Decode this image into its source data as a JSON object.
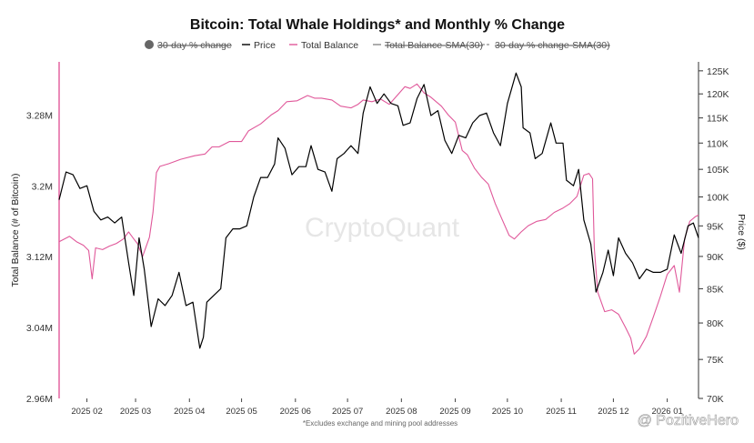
{
  "chart_data": {
    "type": "line",
    "title": "Bitcoin: Total Whale Holdings* and Monthly % Change",
    "footnote": "*Excludes exchange and mining pool addresses",
    "watermark": "CryptoQuant",
    "credit": "@ PozitiveHero",
    "colors": {
      "price": "#000000",
      "balance": "#e0589a",
      "inactive": "#8a8a8a",
      "left_axis_line": "#e0589a"
    },
    "legend": [
      {
        "label": "30-day % change",
        "marker": "dot",
        "active": false
      },
      {
        "label": "Price",
        "marker": "line",
        "active": true
      },
      {
        "label": "Total Balance",
        "marker": "line",
        "active": true
      },
      {
        "label": "Total Balance-SMA(30)",
        "marker": "line",
        "active": false
      },
      {
        "label": "30-day % change-SMA(30)",
        "marker": "dashed",
        "active": false
      }
    ],
    "legend_position": "top-center",
    "x_ticks": [
      "2025 02",
      "2025 03",
      "2025 04",
      "2025 05",
      "2025 06",
      "2025 07",
      "2025 08",
      "2025 09",
      "2025 10",
      "2025 11",
      "2025 12",
      "2026 01"
    ],
    "y_left": {
      "label": "Total Balance (# of Bitcoin)",
      "ticks": [
        "3.28M",
        "3.2M",
        "3.12M",
        "3.04M",
        "2.96M"
      ],
      "range": [
        2.96,
        3.34
      ],
      "unit": "M BTC"
    },
    "y_right": {
      "label": "Price ($)",
      "ticks": [
        "125K",
        "120K",
        "115K",
        "110K",
        "105K",
        "100K",
        "95K",
        "90K",
        "85K",
        "80K",
        "75K",
        "70K"
      ],
      "scale": "log",
      "range": [
        70,
        127
      ],
      "unit": "K USD"
    },
    "x_range": [
      "2025-01-16",
      "2026-01-19"
    ],
    "series": [
      {
        "name": "Price",
        "axis": "right",
        "points": [
          [
            "2025-01-16",
            99.5
          ],
          [
            "2025-01-20",
            104.5
          ],
          [
            "2025-01-24",
            104
          ],
          [
            "2025-01-28",
            101.5
          ],
          [
            "2025-02-01",
            102
          ],
          [
            "2025-02-05",
            97.5
          ],
          [
            "2025-02-09",
            96
          ],
          [
            "2025-02-13",
            96.5
          ],
          [
            "2025-02-17",
            95.5
          ],
          [
            "2025-02-21",
            96.5
          ],
          [
            "2025-02-25",
            89
          ],
          [
            "2025-02-28",
            84
          ],
          [
            "2025-03-03",
            93
          ],
          [
            "2025-03-06",
            88
          ],
          [
            "2025-03-10",
            79.5
          ],
          [
            "2025-03-14",
            83.5
          ],
          [
            "2025-03-18",
            82.5
          ],
          [
            "2025-03-22",
            84
          ],
          [
            "2025-03-26",
            87.5
          ],
          [
            "2025-03-30",
            82.5
          ],
          [
            "2025-04-03",
            83
          ],
          [
            "2025-04-07",
            76.5
          ],
          [
            "2025-04-09",
            78
          ],
          [
            "2025-04-11",
            83
          ],
          [
            "2025-04-15",
            84
          ],
          [
            "2025-04-19",
            85
          ],
          [
            "2025-04-22",
            93
          ],
          [
            "2025-04-26",
            94.5
          ],
          [
            "2025-04-30",
            94.5
          ],
          [
            "2025-05-04",
            95
          ],
          [
            "2025-05-08",
            100
          ],
          [
            "2025-05-12",
            103.5
          ],
          [
            "2025-05-16",
            103.5
          ],
          [
            "2025-05-20",
            106
          ],
          [
            "2025-05-22",
            111
          ],
          [
            "2025-05-26",
            109
          ],
          [
            "2025-05-30",
            104
          ],
          [
            "2025-06-03",
            105.5
          ],
          [
            "2025-06-07",
            105.5
          ],
          [
            "2025-06-10",
            109.5
          ],
          [
            "2025-06-14",
            105
          ],
          [
            "2025-06-18",
            104.5
          ],
          [
            "2025-06-22",
            101
          ],
          [
            "2025-06-25",
            107
          ],
          [
            "2025-06-29",
            108
          ],
          [
            "2025-07-03",
            109.5
          ],
          [
            "2025-07-07",
            108
          ],
          [
            "2025-07-10",
            116
          ],
          [
            "2025-07-14",
            121.5
          ],
          [
            "2025-07-18",
            118
          ],
          [
            "2025-07-22",
            120
          ],
          [
            "2025-07-26",
            118
          ],
          [
            "2025-07-30",
            117.5
          ],
          [
            "2025-08-02",
            113.5
          ],
          [
            "2025-08-06",
            114
          ],
          [
            "2025-08-10",
            119
          ],
          [
            "2025-08-14",
            122
          ],
          [
            "2025-08-18",
            115.5
          ],
          [
            "2025-08-22",
            116.5
          ],
          [
            "2025-08-26",
            110.5
          ],
          [
            "2025-08-30",
            108
          ],
          [
            "2025-09-03",
            111.5
          ],
          [
            "2025-09-07",
            111
          ],
          [
            "2025-09-11",
            114
          ],
          [
            "2025-09-15",
            115.5
          ],
          [
            "2025-09-19",
            116
          ],
          [
            "2025-09-23",
            112
          ],
          [
            "2025-09-27",
            109.5
          ],
          [
            "2025-10-01",
            118
          ],
          [
            "2025-10-06",
            124.5
          ],
          [
            "2025-10-09",
            121.5
          ],
          [
            "2025-10-10",
            113
          ],
          [
            "2025-10-14",
            112
          ],
          [
            "2025-10-17",
            107
          ],
          [
            "2025-10-21",
            108
          ],
          [
            "2025-10-26",
            114
          ],
          [
            "2025-10-29",
            110
          ],
          [
            "2025-11-02",
            110
          ],
          [
            "2025-11-04",
            103
          ],
          [
            "2025-11-08",
            102
          ],
          [
            "2025-11-11",
            105
          ],
          [
            "2025-11-14",
            96
          ],
          [
            "2025-11-18",
            92
          ],
          [
            "2025-11-21",
            84.5
          ],
          [
            "2025-11-25",
            87.5
          ],
          [
            "2025-11-28",
            91
          ],
          [
            "2025-12-01",
            87
          ],
          [
            "2025-12-04",
            93
          ],
          [
            "2025-12-08",
            90.5
          ],
          [
            "2025-12-12",
            89
          ],
          [
            "2025-12-16",
            86.5
          ],
          [
            "2025-12-20",
            88
          ],
          [
            "2025-12-24",
            87.5
          ],
          [
            "2025-12-28",
            87.5
          ],
          [
            "2026-01-01",
            88
          ],
          [
            "2026-01-05",
            93.5
          ],
          [
            "2026-01-09",
            90.5
          ],
          [
            "2026-01-13",
            95
          ],
          [
            "2026-01-16",
            95.5
          ],
          [
            "2026-01-19",
            93
          ]
        ]
      },
      {
        "name": "Total Balance",
        "axis": "left",
        "points": [
          [
            "2025-01-16",
            3.137
          ],
          [
            "2025-01-22",
            3.143
          ],
          [
            "2025-01-26",
            3.137
          ],
          [
            "2025-01-30",
            3.133
          ],
          [
            "2025-02-02",
            3.127
          ],
          [
            "2025-02-04",
            3.095
          ],
          [
            "2025-02-06",
            3.13
          ],
          [
            "2025-02-10",
            3.128
          ],
          [
            "2025-02-14",
            3.132
          ],
          [
            "2025-02-18",
            3.135
          ],
          [
            "2025-02-22",
            3.14
          ],
          [
            "2025-02-25",
            3.148
          ],
          [
            "2025-02-28",
            3.14
          ],
          [
            "2025-03-02",
            3.135
          ],
          [
            "2025-03-05",
            3.12
          ],
          [
            "2025-03-09",
            3.142
          ],
          [
            "2025-03-11",
            3.17
          ],
          [
            "2025-03-13",
            3.215
          ],
          [
            "2025-03-15",
            3.222
          ],
          [
            "2025-03-20",
            3.225
          ],
          [
            "2025-03-27",
            3.23
          ],
          [
            "2025-04-04",
            3.234
          ],
          [
            "2025-04-10",
            3.236
          ],
          [
            "2025-04-14",
            3.244
          ],
          [
            "2025-04-18",
            3.244
          ],
          [
            "2025-04-24",
            3.25
          ],
          [
            "2025-05-01",
            3.25
          ],
          [
            "2025-05-05",
            3.262
          ],
          [
            "2025-05-12",
            3.27
          ],
          [
            "2025-05-18",
            3.28
          ],
          [
            "2025-05-22",
            3.285
          ],
          [
            "2025-05-27",
            3.295
          ],
          [
            "2025-06-02",
            3.296
          ],
          [
            "2025-06-08",
            3.302
          ],
          [
            "2025-06-12",
            3.299
          ],
          [
            "2025-06-16",
            3.299
          ],
          [
            "2025-06-22",
            3.297
          ],
          [
            "2025-06-27",
            3.29
          ],
          [
            "2025-07-03",
            3.288
          ],
          [
            "2025-07-07",
            3.292
          ],
          [
            "2025-07-10",
            3.297
          ],
          [
            "2025-07-15",
            3.295
          ],
          [
            "2025-07-20",
            3.298
          ],
          [
            "2025-07-25",
            3.292
          ],
          [
            "2025-07-30",
            3.303
          ],
          [
            "2025-08-03",
            3.312
          ],
          [
            "2025-08-06",
            3.31
          ],
          [
            "2025-08-10",
            3.315
          ],
          [
            "2025-08-14",
            3.305
          ],
          [
            "2025-08-18",
            3.3
          ],
          [
            "2025-08-24",
            3.29
          ],
          [
            "2025-08-28",
            3.28
          ],
          [
            "2025-09-01",
            3.272
          ],
          [
            "2025-09-05",
            3.24
          ],
          [
            "2025-09-08",
            3.235
          ],
          [
            "2025-09-12",
            3.22
          ],
          [
            "2025-09-16",
            3.21
          ],
          [
            "2025-09-20",
            3.202
          ],
          [
            "2025-09-24",
            3.18
          ],
          [
            "2025-09-28",
            3.162
          ],
          [
            "2025-10-02",
            3.144
          ],
          [
            "2025-10-05",
            3.14
          ],
          [
            "2025-10-09",
            3.148
          ],
          [
            "2025-10-13",
            3.155
          ],
          [
            "2025-10-18",
            3.16
          ],
          [
            "2025-10-23",
            3.162
          ],
          [
            "2025-10-28",
            3.17
          ],
          [
            "2025-11-02",
            3.175
          ],
          [
            "2025-11-06",
            3.18
          ],
          [
            "2025-11-10",
            3.188
          ],
          [
            "2025-11-14",
            3.212
          ],
          [
            "2025-11-17",
            3.214
          ],
          [
            "2025-11-19",
            3.208
          ],
          [
            "2025-11-20",
            3.13
          ],
          [
            "2025-11-22",
            3.08
          ],
          [
            "2025-11-26",
            3.058
          ],
          [
            "2025-11-30",
            3.06
          ],
          [
            "2025-12-04",
            3.055
          ],
          [
            "2025-12-08",
            3.04
          ],
          [
            "2025-12-11",
            3.028
          ],
          [
            "2025-12-13",
            3.01
          ],
          [
            "2025-12-16",
            3.016
          ],
          [
            "2025-12-20",
            3.03
          ],
          [
            "2025-12-24",
            3.052
          ],
          [
            "2025-12-28",
            3.075
          ],
          [
            "2026-01-01",
            3.1
          ],
          [
            "2026-01-05",
            3.11
          ],
          [
            "2026-01-08",
            3.08
          ],
          [
            "2026-01-11",
            3.14
          ],
          [
            "2026-01-14",
            3.16
          ],
          [
            "2026-01-17",
            3.165
          ],
          [
            "2026-01-19",
            3.167
          ]
        ]
      }
    ]
  }
}
